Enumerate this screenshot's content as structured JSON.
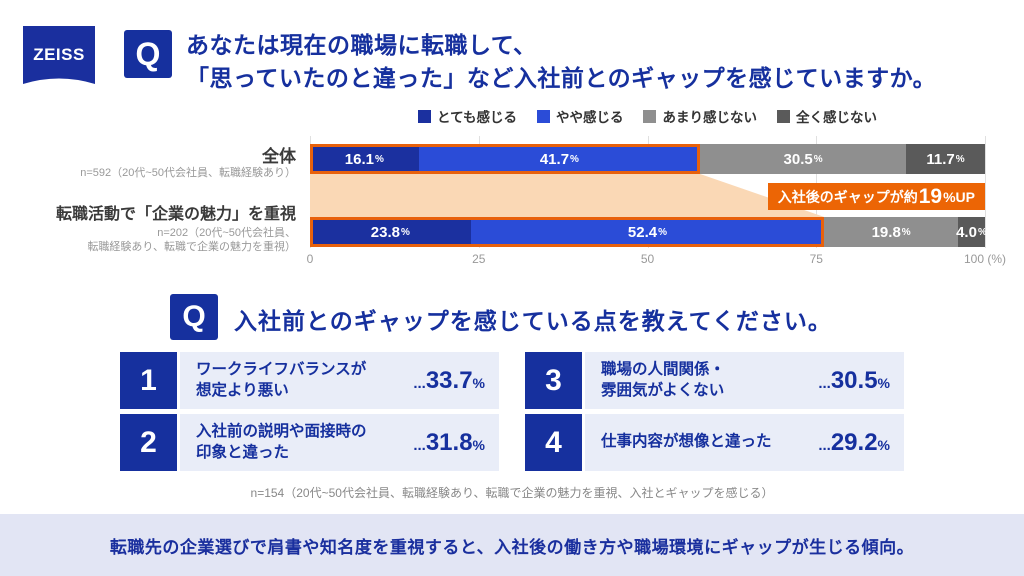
{
  "logo": {
    "text": "ZEISS"
  },
  "q1": {
    "badge": "Q",
    "line1": "あなたは現在の職場に転職して、",
    "line2": "「思っていたのと違った」など入社前とのギャップを感じていますか。"
  },
  "chart_data": {
    "type": "bar",
    "orientation": "horizontal",
    "stacked": true,
    "unit": "%",
    "xlim": [
      0,
      100
    ],
    "legend_position": "top",
    "grid": true,
    "legend": [
      {
        "label": "とても感じる",
        "color": "#1B309F"
      },
      {
        "label": "やや感じる",
        "color": "#2B4CD7"
      },
      {
        "label": "あまり感じない",
        "color": "#8F8F8F"
      },
      {
        "label": "全く感じない",
        "color": "#5A5A5A"
      }
    ],
    "rows": [
      {
        "label": "全体",
        "sub_lines": [
          "n=592（20代~50代会社員、転職経験あり）"
        ],
        "values": [
          16.1,
          41.7,
          30.5,
          11.7
        ]
      },
      {
        "label": "転職活動で「企業の魅力」を重視",
        "sub_lines": [
          "n=202（20代~50代会社員、",
          "転職経験あり、転職で企業の魅力を重視）"
        ],
        "values": [
          23.8,
          52.4,
          19.8,
          4.0
        ]
      }
    ],
    "ticks": [
      {
        "v": 0,
        "label": "0"
      },
      {
        "v": 25,
        "label": "25"
      },
      {
        "v": 50,
        "label": "50"
      },
      {
        "v": 75,
        "label": "75"
      },
      {
        "v": 100,
        "label": "100 (%)"
      }
    ],
    "callout": {
      "prefix": "入社後のギャップが約",
      "big": "19",
      "suffix": "%UP"
    },
    "highlight_colors": {
      "outline_orange": "#E8610C",
      "band_peach": "#FAD8B5"
    }
  },
  "q2": {
    "badge": "Q",
    "question": "入社前とのギャップを感じている点を教えてください。"
  },
  "ranking": {
    "items": [
      {
        "rank": "1",
        "line1": "ワークライフバランスが",
        "line2": "想定より悪い",
        "dots": "...",
        "value": "33.7",
        "unit": "%"
      },
      {
        "rank": "2",
        "line1": "入社前の説明や面接時の",
        "line2": "印象と違った",
        "dots": "...",
        "value": "31.8",
        "unit": "%"
      },
      {
        "rank": "3",
        "line1": "職場の人間関係・",
        "line2": "雰囲気がよくない",
        "dots": "...",
        "value": "30.5",
        "unit": "%"
      },
      {
        "rank": "4",
        "line1": "仕事内容が想像と違った",
        "dots": "...",
        "value": "29.2",
        "unit": "%"
      }
    ],
    "note": "n=154（20代~50代会社員、転職経験あり、転職で企業の魅力を重視、入社とギャップを感じる）"
  },
  "banner": {
    "text": "転職先の企業選びで肩書や知名度を重視すると、入社後の働き方や職場環境にギャップが生じる傾向。"
  },
  "colors": {
    "brand_navy": "#16309E",
    "accent_orange": "#EC6505",
    "rank_row_bg": "#E9EDF8",
    "banner_bg": "#E2E5F4"
  }
}
